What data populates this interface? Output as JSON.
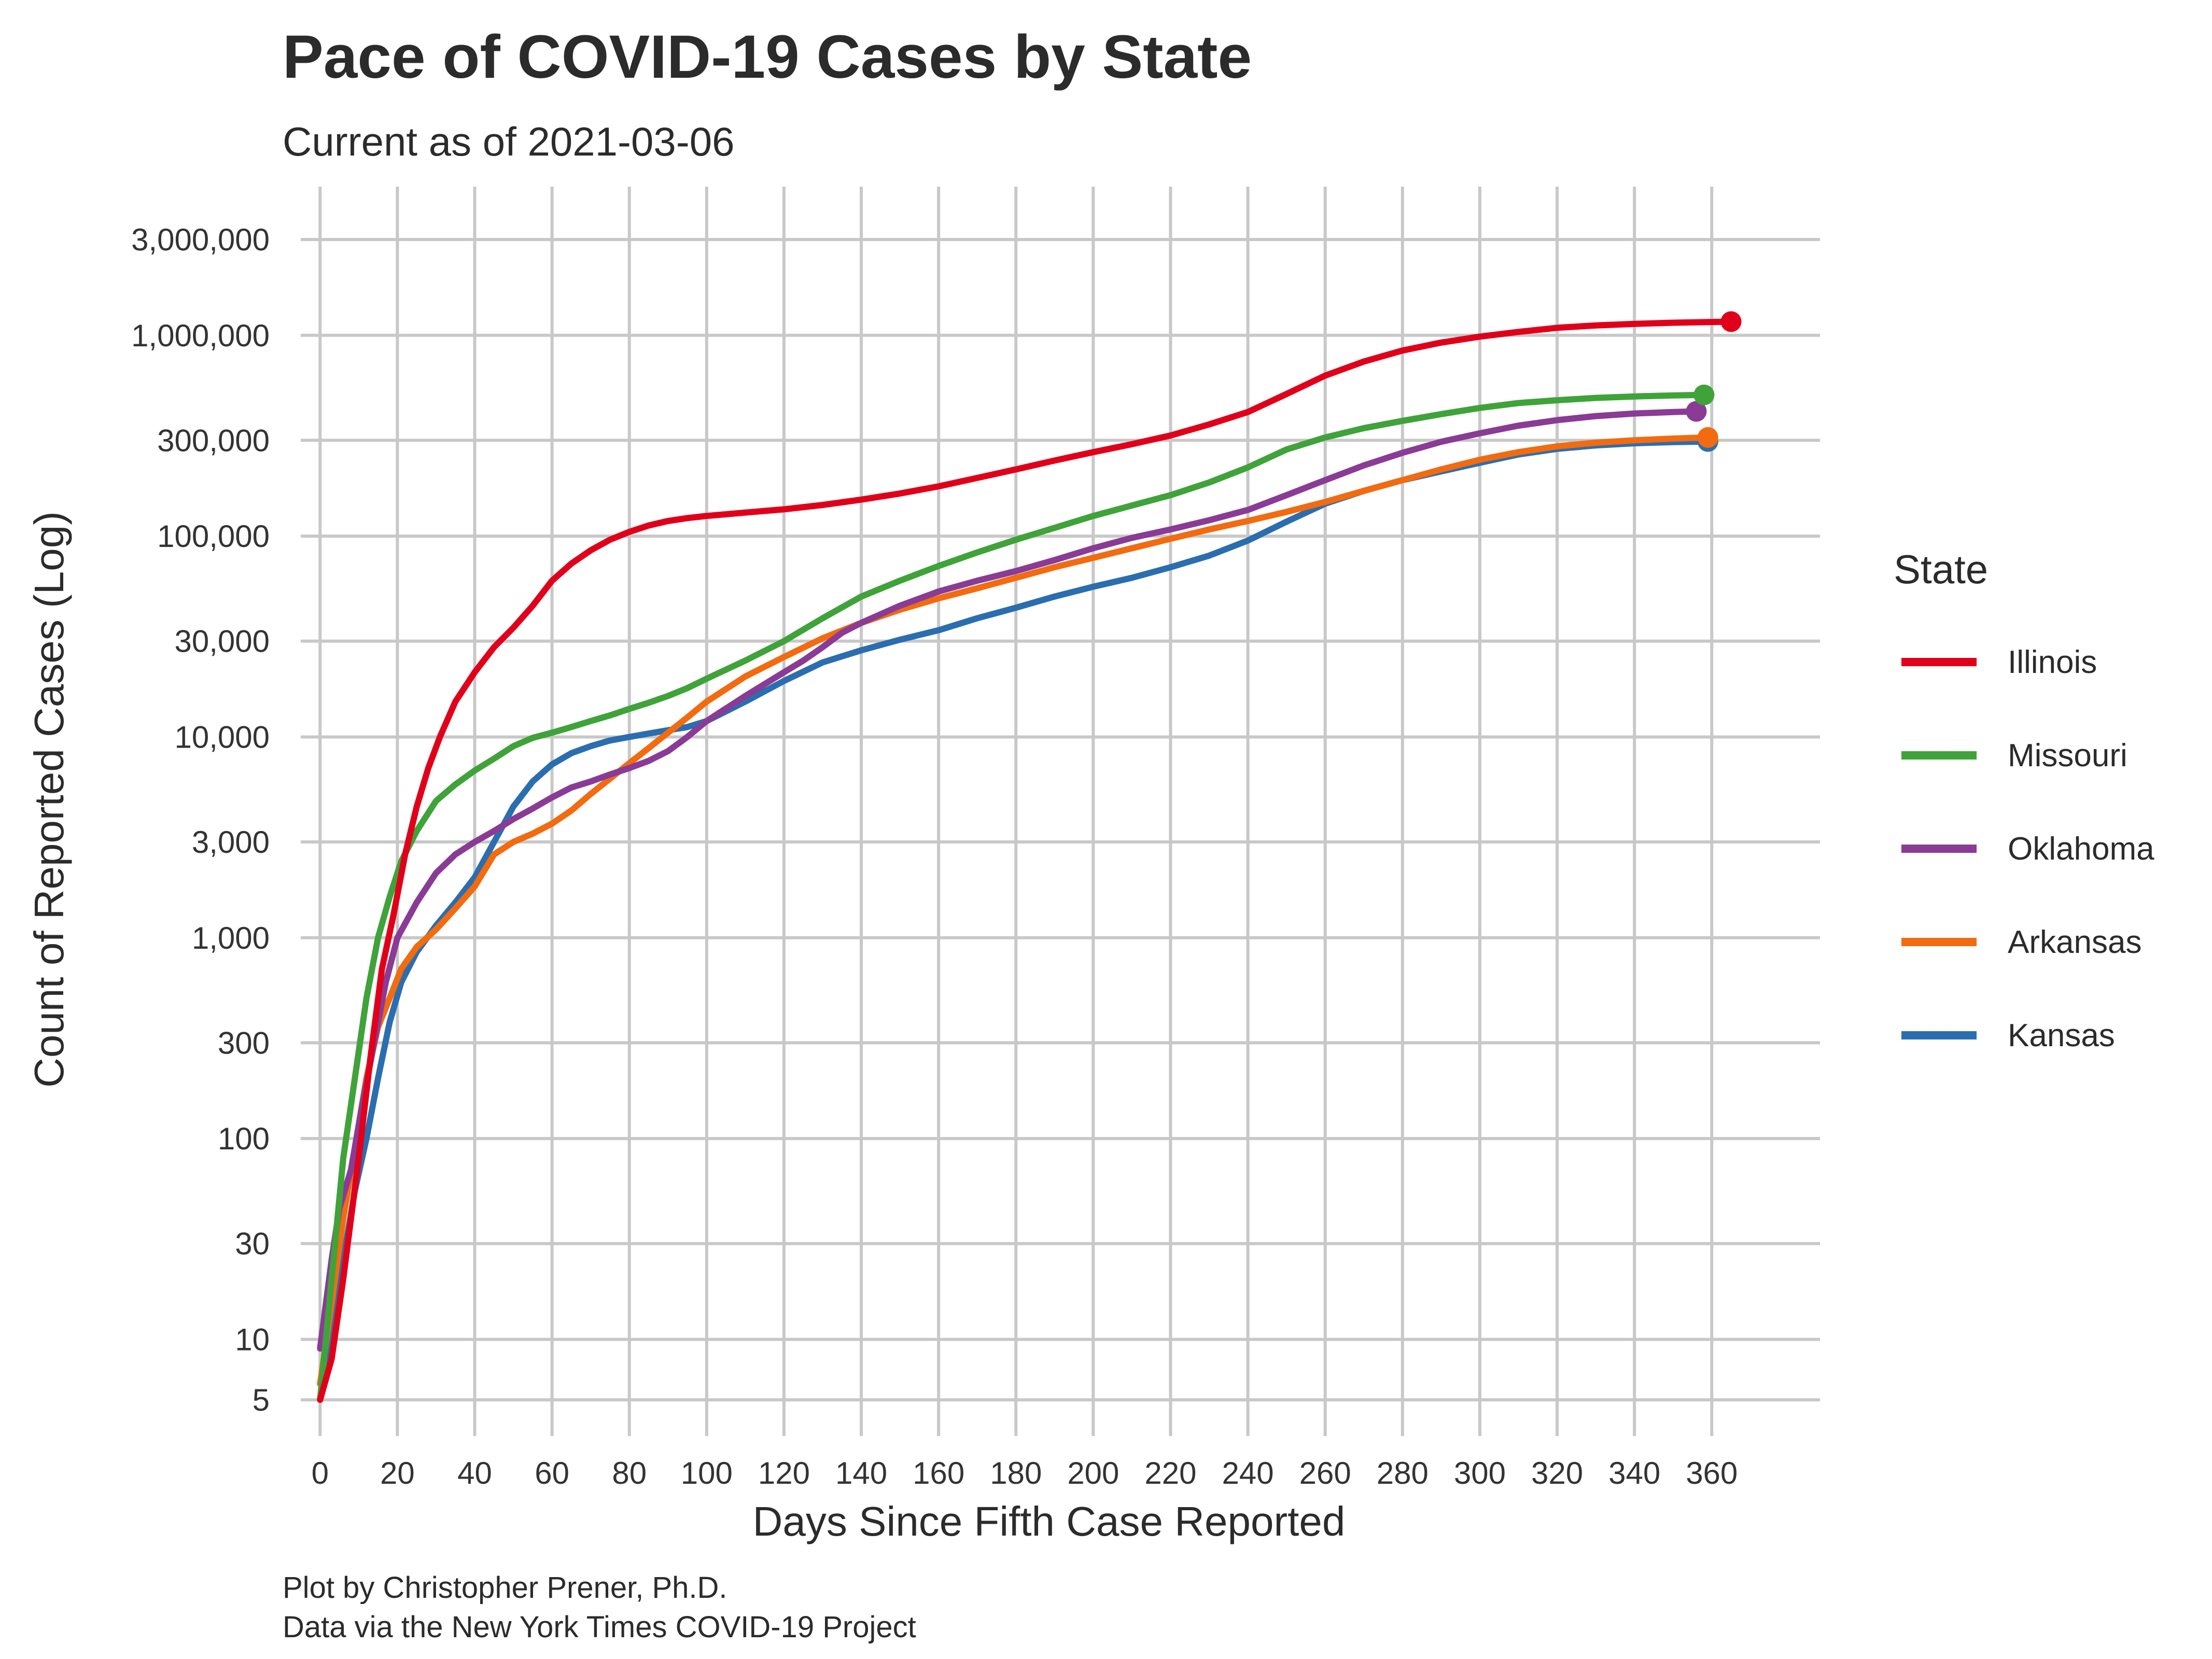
{
  "chart_data": {
    "type": "line",
    "title": "Pace of COVID-19 Cases by State",
    "subtitle": "Current as of 2021-03-06",
    "xlabel": "Days Since Fifth Case Reported",
    "ylabel": "Count of Reported Cases (Log)",
    "y_scale": "log",
    "grid": true,
    "xlim": [
      -5,
      388
    ],
    "ylim": [
      3.3,
      5500000
    ],
    "x_ticks": [
      0,
      20,
      40,
      60,
      80,
      100,
      120,
      140,
      160,
      180,
      200,
      220,
      240,
      260,
      280,
      300,
      320,
      340,
      360
    ],
    "x_tick_labels": [
      "0",
      "20",
      "40",
      "60",
      "80",
      "100",
      "120",
      "140",
      "160",
      "180",
      "200",
      "220",
      "240",
      "260",
      "280",
      "300",
      "320",
      "340",
      "360"
    ],
    "y_ticks": [
      5,
      10,
      30,
      100,
      300,
      1000,
      3000,
      10000,
      30000,
      100000,
      300000,
      1000000,
      3000000
    ],
    "y_tick_labels": [
      "5",
      "10",
      "30",
      "100",
      "300",
      "1,000",
      "3,000",
      "10,000",
      "30,000",
      "100,000",
      "300,000",
      "1,000,000",
      "3,000,000"
    ],
    "legend": {
      "title": "State",
      "position": "right"
    },
    "caption": [
      "Plot by Christopher Prener, Ph.D.",
      "Data via the New York Times COVID-19 Project"
    ],
    "series": [
      {
        "name": "Illinois",
        "color": "#E0001A",
        "points": [
          [
            0,
            5
          ],
          [
            3,
            8
          ],
          [
            6,
            20
          ],
          [
            10,
            80
          ],
          [
            13,
            250
          ],
          [
            16,
            700
          ],
          [
            19,
            1300
          ],
          [
            22,
            2600
          ],
          [
            25,
            4500
          ],
          [
            28,
            7000
          ],
          [
            31,
            10000
          ],
          [
            35,
            15000
          ],
          [
            40,
            21000
          ],
          [
            45,
            28000
          ],
          [
            50,
            35000
          ],
          [
            55,
            45000
          ],
          [
            60,
            60000
          ],
          [
            65,
            73000
          ],
          [
            70,
            85000
          ],
          [
            75,
            96000
          ],
          [
            80,
            105000
          ],
          [
            85,
            113000
          ],
          [
            90,
            119000
          ],
          [
            95,
            123000
          ],
          [
            100,
            126000
          ],
          [
            110,
            131000
          ],
          [
            120,
            136000
          ],
          [
            130,
            143000
          ],
          [
            140,
            152000
          ],
          [
            150,
            163000
          ],
          [
            160,
            177000
          ],
          [
            170,
            195000
          ],
          [
            180,
            215000
          ],
          [
            190,
            238000
          ],
          [
            200,
            262000
          ],
          [
            210,
            287000
          ],
          [
            220,
            317000
          ],
          [
            230,
            360000
          ],
          [
            240,
            415000
          ],
          [
            250,
            510000
          ],
          [
            260,
            630000
          ],
          [
            270,
            740000
          ],
          [
            280,
            840000
          ],
          [
            290,
            920000
          ],
          [
            300,
            985000
          ],
          [
            310,
            1040000
          ],
          [
            320,
            1090000
          ],
          [
            330,
            1120000
          ],
          [
            340,
            1140000
          ],
          [
            350,
            1155000
          ],
          [
            360,
            1165000
          ],
          [
            365,
            1170000
          ]
        ]
      },
      {
        "name": "Missouri",
        "color": "#3FA33A",
        "points": [
          [
            0,
            5
          ],
          [
            3,
            20
          ],
          [
            6,
            80
          ],
          [
            9,
            200
          ],
          [
            12,
            500
          ],
          [
            15,
            1000
          ],
          [
            18,
            1600
          ],
          [
            21,
            2400
          ],
          [
            25,
            3400
          ],
          [
            30,
            4800
          ],
          [
            35,
            5800
          ],
          [
            40,
            6800
          ],
          [
            45,
            7800
          ],
          [
            50,
            9000
          ],
          [
            55,
            9900
          ],
          [
            60,
            10500
          ],
          [
            65,
            11200
          ],
          [
            70,
            12000
          ],
          [
            75,
            12800
          ],
          [
            80,
            13800
          ],
          [
            85,
            14800
          ],
          [
            90,
            16000
          ],
          [
            95,
            17500
          ],
          [
            100,
            19500
          ],
          [
            110,
            24000
          ],
          [
            120,
            30000
          ],
          [
            130,
            39000
          ],
          [
            140,
            50000
          ],
          [
            150,
            60000
          ],
          [
            160,
            71000
          ],
          [
            170,
            83000
          ],
          [
            180,
            96000
          ],
          [
            190,
            110000
          ],
          [
            200,
            126000
          ],
          [
            210,
            142000
          ],
          [
            220,
            160000
          ],
          [
            230,
            185000
          ],
          [
            240,
            220000
          ],
          [
            250,
            270000
          ],
          [
            260,
            310000
          ],
          [
            270,
            345000
          ],
          [
            280,
            375000
          ],
          [
            290,
            405000
          ],
          [
            300,
            435000
          ],
          [
            310,
            460000
          ],
          [
            320,
            475000
          ],
          [
            330,
            488000
          ],
          [
            340,
            496000
          ],
          [
            350,
            502000
          ],
          [
            358,
            505000
          ]
        ]
      },
      {
        "name": "Oklahoma",
        "color": "#8A3B95",
        "points": [
          [
            0,
            9
          ],
          [
            3,
            25
          ],
          [
            5,
            45
          ],
          [
            8,
            70
          ],
          [
            11,
            150
          ],
          [
            14,
            300
          ],
          [
            17,
            600
          ],
          [
            20,
            1000
          ],
          [
            25,
            1500
          ],
          [
            30,
            2100
          ],
          [
            35,
            2600
          ],
          [
            40,
            3000
          ],
          [
            45,
            3400
          ],
          [
            50,
            3900
          ],
          [
            55,
            4400
          ],
          [
            60,
            5000
          ],
          [
            65,
            5600
          ],
          [
            70,
            6000
          ],
          [
            75,
            6500
          ],
          [
            80,
            7000
          ],
          [
            85,
            7600
          ],
          [
            90,
            8500
          ],
          [
            95,
            10000
          ],
          [
            100,
            12000
          ],
          [
            110,
            16000
          ],
          [
            120,
            21000
          ],
          [
            125,
            24000
          ],
          [
            130,
            28000
          ],
          [
            135,
            33000
          ],
          [
            140,
            37000
          ],
          [
            150,
            45000
          ],
          [
            160,
            53000
          ],
          [
            170,
            60000
          ],
          [
            180,
            67000
          ],
          [
            190,
            76000
          ],
          [
            200,
            87000
          ],
          [
            210,
            98000
          ],
          [
            220,
            108000
          ],
          [
            230,
            120000
          ],
          [
            240,
            135000
          ],
          [
            250,
            160000
          ],
          [
            260,
            190000
          ],
          [
            270,
            225000
          ],
          [
            280,
            260000
          ],
          [
            290,
            295000
          ],
          [
            300,
            325000
          ],
          [
            310,
            355000
          ],
          [
            320,
            378000
          ],
          [
            330,
            396000
          ],
          [
            340,
            408000
          ],
          [
            350,
            415000
          ],
          [
            356,
            418000
          ]
        ]
      },
      {
        "name": "Arkansas",
        "color": "#F26B10",
        "points": [
          [
            0,
            6
          ],
          [
            3,
            15
          ],
          [
            6,
            40
          ],
          [
            9,
            90
          ],
          [
            12,
            200
          ],
          [
            15,
            360
          ],
          [
            18,
            500
          ],
          [
            21,
            700
          ],
          [
            25,
            900
          ],
          [
            30,
            1100
          ],
          [
            35,
            1400
          ],
          [
            40,
            1800
          ],
          [
            45,
            2600
          ],
          [
            50,
            3000
          ],
          [
            55,
            3300
          ],
          [
            60,
            3700
          ],
          [
            65,
            4300
          ],
          [
            70,
            5200
          ],
          [
            75,
            6200
          ],
          [
            80,
            7400
          ],
          [
            85,
            8800
          ],
          [
            90,
            10500
          ],
          [
            95,
            12500
          ],
          [
            100,
            15000
          ],
          [
            110,
            20000
          ],
          [
            120,
            25000
          ],
          [
            130,
            31000
          ],
          [
            140,
            37000
          ],
          [
            150,
            43000
          ],
          [
            160,
            49000
          ],
          [
            170,
            55000
          ],
          [
            180,
            62000
          ],
          [
            190,
            70000
          ],
          [
            200,
            78000
          ],
          [
            210,
            87000
          ],
          [
            220,
            97000
          ],
          [
            230,
            108000
          ],
          [
            240,
            119000
          ],
          [
            250,
            132000
          ],
          [
            260,
            148000
          ],
          [
            270,
            168000
          ],
          [
            280,
            190000
          ],
          [
            290,
            215000
          ],
          [
            300,
            240000
          ],
          [
            310,
            262000
          ],
          [
            320,
            280000
          ],
          [
            330,
            292000
          ],
          [
            340,
            300000
          ],
          [
            350,
            306000
          ],
          [
            359,
            310000
          ]
        ]
      },
      {
        "name": "Kansas",
        "color": "#2B6EAF",
        "points": [
          [
            0,
            5
          ],
          [
            3,
            10
          ],
          [
            6,
            25
          ],
          [
            9,
            55
          ],
          [
            12,
            100
          ],
          [
            15,
            200
          ],
          [
            18,
            380
          ],
          [
            21,
            600
          ],
          [
            25,
            850
          ],
          [
            30,
            1150
          ],
          [
            35,
            1500
          ],
          [
            40,
            2000
          ],
          [
            45,
            3000
          ],
          [
            50,
            4500
          ],
          [
            55,
            6000
          ],
          [
            60,
            7300
          ],
          [
            65,
            8300
          ],
          [
            70,
            9000
          ],
          [
            75,
            9600
          ],
          [
            80,
            10000
          ],
          [
            85,
            10400
          ],
          [
            90,
            10800
          ],
          [
            95,
            11200
          ],
          [
            100,
            12000
          ],
          [
            110,
            15000
          ],
          [
            120,
            19000
          ],
          [
            130,
            23500
          ],
          [
            140,
            27000
          ],
          [
            150,
            30500
          ],
          [
            160,
            34000
          ],
          [
            170,
            39000
          ],
          [
            180,
            44000
          ],
          [
            190,
            50000
          ],
          [
            200,
            56000
          ],
          [
            210,
            62000
          ],
          [
            220,
            70000
          ],
          [
            230,
            80000
          ],
          [
            240,
            95000
          ],
          [
            250,
            118000
          ],
          [
            260,
            145000
          ],
          [
            270,
            168000
          ],
          [
            280,
            190000
          ],
          [
            290,
            210000
          ],
          [
            300,
            232000
          ],
          [
            310,
            255000
          ],
          [
            320,
            272000
          ],
          [
            330,
            283000
          ],
          [
            340,
            290000
          ],
          [
            350,
            294000
          ],
          [
            359,
            296000
          ]
        ]
      }
    ]
  }
}
